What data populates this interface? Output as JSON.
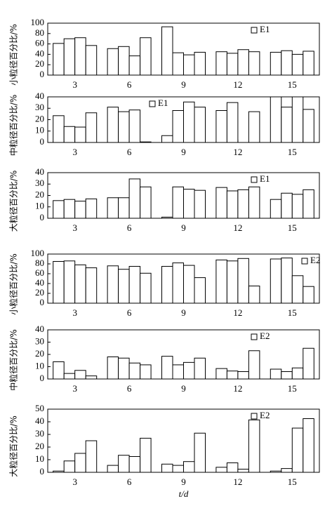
{
  "chart_data": [
    {
      "type": "bar",
      "ylabel": "小粒径百分比/%",
      "categories": [
        "3",
        "6",
        "9",
        "12",
        "15"
      ],
      "legend": "upper center",
      "series": [
        {
          "name": "E1",
          "color": "#ffffff",
          "values": [
            [
              61,
              70,
              72,
              57
            ],
            [
              51,
              55,
              37,
              72
            ],
            [
              93,
              43,
              39,
              44
            ],
            [
              45,
              42,
              49,
              45
            ],
            [
              44,
              47,
              40,
              46
            ]
          ]
        }
      ],
      "ylim": [
        0,
        100
      ],
      "yticks": [
        0,
        20,
        40,
        60,
        80,
        100
      ]
    },
    {
      "type": "bar",
      "ylabel": "中粒径百分比/%",
      "categories": [
        "3",
        "6",
        "9",
        "12",
        "15"
      ],
      "legend": "upper left",
      "series": [
        {
          "name": "E1",
          "color": "#ffffff",
          "values": [
            [
              23.5,
              14,
              13.5,
              26
            ],
            [
              31,
              27,
              28.5,
              0.5
            ],
            [
              6,
              28,
              35.5,
              31
            ],
            [
              28,
              35,
              null,
              27
            ],
            [
              40,
              31,
              40,
              29
            ]
          ]
        }
      ],
      "ylim": [
        0,
        40
      ],
      "yticks": [
        0,
        10,
        20,
        30,
        40
      ]
    },
    {
      "type": "bar",
      "ylabel": "大粒径百分比/%",
      "categories": [
        "3",
        "6",
        "9",
        "12",
        "15"
      ],
      "legend": "upper center",
      "series": [
        {
          "name": "E1",
          "color": "#ffffff",
          "values": [
            [
              15.5,
              16.5,
              15,
              17
            ],
            [
              18,
              18,
              34.5,
              27.5
            ],
            [
              1,
              27.5,
              25.5,
              24.5
            ],
            [
              27,
              24,
              25,
              27.5
            ],
            [
              16.5,
              22,
              21,
              25
            ]
          ]
        }
      ],
      "ylim": [
        0,
        40
      ],
      "yticks": [
        0,
        10,
        20,
        30,
        40
      ]
    },
    {
      "type": "bar",
      "ylabel": "小粒径百分比/%",
      "categories": [
        "3",
        "6",
        "9",
        "12",
        "15"
      ],
      "legend": "upper right",
      "series": [
        {
          "name": "E2",
          "color": "#ffffff",
          "values": [
            [
              85,
              86,
              78,
              72
            ],
            [
              76,
              69,
              75,
              61
            ],
            [
              75,
              82,
              77,
              52
            ],
            [
              88,
              86,
              91,
              35
            ],
            [
              90,
              92,
              56,
              34
            ]
          ]
        }
      ],
      "ylim": [
        0,
        100
      ],
      "yticks": [
        0,
        20,
        40,
        60,
        80,
        100
      ]
    },
    {
      "type": "bar",
      "ylabel": "中粒径百分比/%",
      "categories": [
        "3",
        "6",
        "9",
        "12",
        "15"
      ],
      "legend": "upper center",
      "series": [
        {
          "name": "E2",
          "color": "#ffffff",
          "values": [
            [
              14,
              4.5,
              7,
              2.5
            ],
            [
              18,
              17,
              13,
              11.5
            ],
            [
              18.5,
              11.5,
              13.5,
              17
            ],
            [
              8.5,
              6.5,
              6,
              23
            ],
            [
              8,
              6,
              9,
              25
            ]
          ]
        }
      ],
      "ylim": [
        0,
        40
      ],
      "yticks": [
        0,
        10,
        20,
        30,
        40
      ]
    },
    {
      "type": "bar",
      "ylabel": "大粒径百分比/%",
      "xlabel": "t/d",
      "categories": [
        "3",
        "6",
        "9",
        "12",
        "15"
      ],
      "legend": "upper center",
      "series": [
        {
          "name": "E2",
          "color": "#ffffff",
          "values": [
            [
              1,
              9,
              15,
              25
            ],
            [
              5.5,
              13.5,
              12.5,
              27
            ],
            [
              6.5,
              5.5,
              8.5,
              31
            ],
            [
              4,
              7.5,
              2.5,
              41.5
            ],
            [
              1,
              3,
              35,
              42.5
            ]
          ]
        }
      ],
      "ylim": [
        0,
        50
      ],
      "yticks": [
        0,
        10,
        20,
        30,
        40,
        50
      ]
    }
  ]
}
